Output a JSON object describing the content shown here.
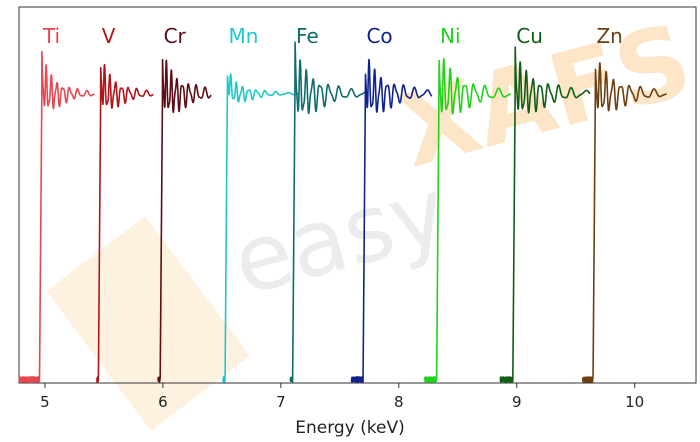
{
  "chart_data": {
    "type": "line",
    "title": "",
    "xlabel": "Energy (keV)",
    "ylabel": "",
    "xlim": [
      4.78,
      10.52
    ],
    "ylim": [
      0,
      1.3
    ],
    "xticks": [
      5,
      6,
      7,
      8,
      9,
      10
    ],
    "grid": false,
    "legend": "element labels above each spectrum",
    "watermark": {
      "part1": "easy",
      "part2": "XAFS"
    },
    "series": [
      {
        "name": "Ti",
        "edge": 4.966,
        "x_end": 5.42,
        "color": "#e8474f",
        "osc_amp": 0.085,
        "osc_period": 0.035,
        "decay": 6.0,
        "phase": 0.3,
        "x_start": 4.78
      },
      {
        "name": "V",
        "edge": 5.465,
        "x_end": 5.92,
        "color": "#b3131b",
        "osc_amp": 0.08,
        "osc_period": 0.036,
        "decay": 5.5,
        "phase": 1.1,
        "x_start": 5.44
      },
      {
        "name": "Cr",
        "edge": 5.989,
        "x_end": 6.41,
        "color": "#5c0d16",
        "osc_amp": 0.09,
        "osc_period": 0.034,
        "decay": 4.5,
        "phase": 0.7,
        "x_start": 5.96
      },
      {
        "name": "Mn",
        "edge": 6.539,
        "x_end": 7.15,
        "color": "#1fc9c9",
        "osc_amp": 0.045,
        "osc_period": 0.038,
        "decay": 5.0,
        "phase": 2.0,
        "x_start": 6.51
      },
      {
        "name": "Fe",
        "edge": 7.112,
        "x_end": 7.72,
        "color": "#0e6b6e",
        "osc_amp": 0.1,
        "osc_period": 0.04,
        "decay": 4.2,
        "phase": 0.2,
        "x_start": 7.08
      },
      {
        "name": "Co",
        "edge": 7.709,
        "x_end": 8.28,
        "color": "#10238f",
        "osc_amp": 0.09,
        "osc_period": 0.038,
        "decay": 4.0,
        "phase": 1.6,
        "x_start": 7.6
      },
      {
        "name": "Ni",
        "edge": 8.333,
        "x_end": 8.95,
        "color": "#1fd41a",
        "osc_amp": 0.1,
        "osc_period": 0.042,
        "decay": 3.8,
        "phase": 0.9,
        "x_start": 8.22
      },
      {
        "name": "Cu",
        "edge": 8.979,
        "x_end": 9.62,
        "color": "#0f5e12",
        "osc_amp": 0.09,
        "osc_period": 0.04,
        "decay": 3.6,
        "phase": 0.4,
        "x_start": 8.86
      },
      {
        "name": "Zn",
        "edge": 9.659,
        "x_end": 10.27,
        "color": "#6b3f10",
        "osc_amp": 0.085,
        "osc_period": 0.042,
        "decay": 3.8,
        "phase": 1.3,
        "x_start": 9.56
      }
    ]
  }
}
